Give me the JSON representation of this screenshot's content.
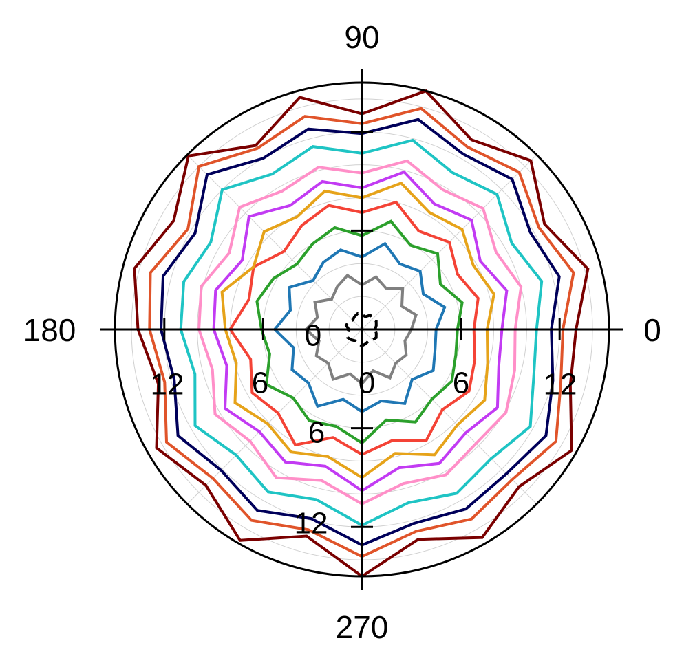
{
  "chart_data": {
    "type": "polar-line",
    "angle_labels": [
      "0",
      "90",
      "180",
      "270"
    ],
    "radial_ticks": [
      "0",
      "6",
      "12"
    ],
    "rmax": 15,
    "grid": true,
    "ring_step": 2,
    "series": [
      {
        "color": "#000000",
        "dash": true,
        "values": [
          0.8,
          0.9,
          1.0,
          0.9,
          1.0,
          0.8,
          0.9,
          1.0,
          0.9,
          0.8,
          0.9,
          1.0,
          0.8,
          0.9,
          1.0,
          0.9,
          0.8,
          0.9,
          1.0,
          0.9,
          0.8,
          0.9,
          1.0,
          0.9
        ]
      },
      {
        "color": "#808080",
        "values": [
          3.0,
          3.4,
          2.8,
          3.5,
          2.9,
          3.3,
          2.7,
          3.4,
          3.0,
          2.6,
          3.3,
          2.8,
          3.4,
          2.7,
          3.2,
          2.9,
          3.5,
          2.8,
          3.3,
          2.6,
          3.4,
          2.9,
          3.1,
          2.7
        ]
      },
      {
        "color": "#1f77b4",
        "values": [
          4.5,
          5.2,
          4.3,
          5.0,
          4.6,
          5.4,
          4.4,
          5.0,
          4.7,
          4.2,
          5.1,
          4.5,
          5.3,
          4.3,
          4.9,
          4.6,
          5.4,
          4.4,
          5.0,
          4.5,
          5.2,
          4.3,
          5.0,
          4.6
        ]
      },
      {
        "color": "#2ca02c",
        "values": [
          5.8,
          6.3,
          5.5,
          6.5,
          5.9,
          6.8,
          5.7,
          6.4,
          6.0,
          5.6,
          6.2,
          6.6,
          6.1,
          5.8,
          6.7,
          5.9,
          6.4,
          6.1,
          6.9,
          5.7,
          6.5,
          6.0,
          6.3,
          5.9
        ]
      },
      {
        "color": "#f44336",
        "values": [
          6.8,
          7.3,
          6.7,
          7.5,
          6.9,
          8.0,
          7.1,
          7.8,
          7.3,
          6.7,
          7.6,
          7.1,
          8.0,
          7.0,
          7.7,
          7.2,
          8.1,
          6.8,
          7.6,
          7.0,
          7.8,
          6.9,
          7.5,
          7.1
        ]
      },
      {
        "color": "#e6a31a",
        "values": [
          7.6,
          8.3,
          7.8,
          8.6,
          8.2,
          9.2,
          8.0,
          8.7,
          7.9,
          8.4,
          7.6,
          8.8,
          8.3,
          7.9,
          8.9,
          8.1,
          8.6,
          8.0,
          9.0,
          7.8,
          8.8,
          8.2,
          8.6,
          7.9
        ]
      },
      {
        "color": "#c23bf3",
        "values": [
          8.5,
          9.1,
          8.3,
          9.4,
          8.8,
          9.9,
          8.6,
          9.3,
          8.7,
          9.7,
          8.4,
          9.2,
          9.0,
          8.5,
          9.6,
          8.8,
          9.3,
          8.6,
          9.8,
          8.7,
          9.4,
          8.9,
          9.5,
          8.6
        ]
      },
      {
        "color": "#ff8fc8",
        "values": [
          9.3,
          10.0,
          9.4,
          10.4,
          9.8,
          10.6,
          9.5,
          10.2,
          9.7,
          10.5,
          9.3,
          10.1,
          9.9,
          9.4,
          10.3,
          9.6,
          10.4,
          9.5,
          10.6,
          9.7,
          10.2,
          9.8,
          10.1,
          9.6
        ]
      },
      {
        "color": "#1fc4c4",
        "values": [
          10.6,
          11.3,
          10.5,
          11.6,
          11.0,
          11.9,
          10.7,
          11.5,
          10.9,
          12.0,
          10.6,
          11.2,
          11.0,
          10.5,
          11.7,
          10.8,
          11.4,
          10.7,
          11.9,
          10.9,
          11.5,
          11.1,
          11.8,
          10.8
        ]
      },
      {
        "color": "#00005a",
        "values": [
          11.5,
          12.4,
          11.8,
          12.9,
          12.3,
          13.2,
          11.9,
          12.6,
          12.0,
          13.3,
          11.7,
          12.5,
          12.2,
          11.8,
          12.9,
          12.1,
          12.7,
          11.9,
          13.1,
          12.2,
          12.6,
          12.4,
          12.9,
          12.0
        ]
      },
      {
        "color": "#e0542a",
        "values": [
          12.2,
          13.3,
          12.4,
          13.5,
          12.8,
          13.9,
          12.5,
          13.4,
          12.7,
          14.0,
          12.2,
          13.3,
          12.9,
          12.4,
          13.7,
          12.8,
          13.4,
          12.6,
          13.8,
          12.7,
          13.3,
          12.9,
          13.6,
          12.5
        ]
      },
      {
        "color": "#7a0000",
        "values": [
          13.0,
          14.2,
          12.8,
          14.5,
          13.3,
          15.0,
          13.1,
          14.6,
          12.9,
          14.9,
          13.2,
          14.3,
          13.6,
          12.8,
          14.4,
          13.4,
          14.8,
          13.0,
          15.0,
          13.2,
          14.6,
          13.5,
          14.7,
          13.1
        ]
      }
    ]
  }
}
